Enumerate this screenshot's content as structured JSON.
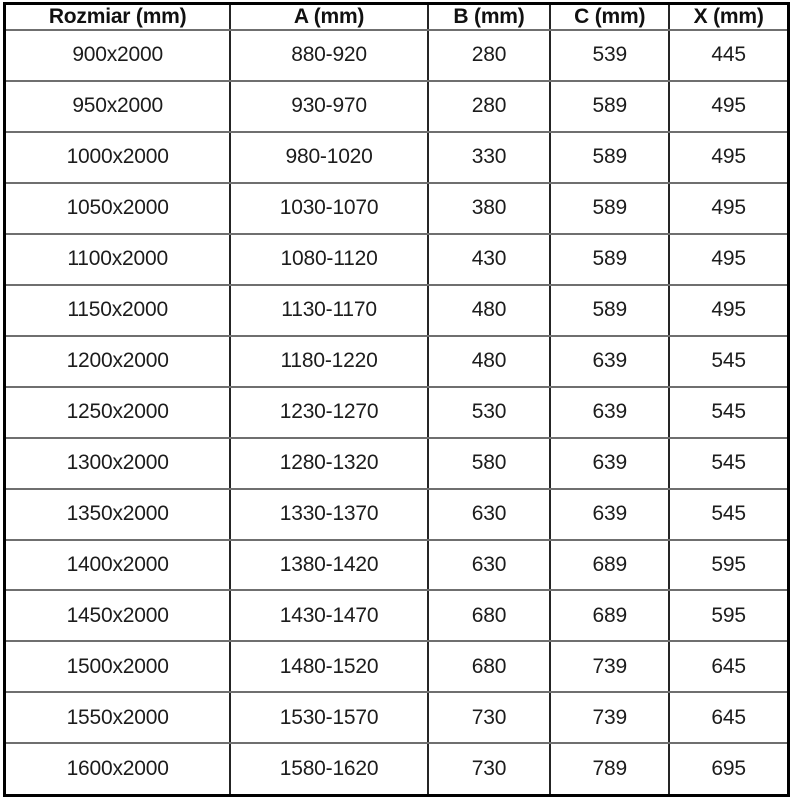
{
  "table": {
    "headers": [
      "Rozmiar (mm)",
      "A (mm)",
      "B (mm)",
      "C (mm)",
      "X (mm)"
    ],
    "rows": [
      [
        "900x2000",
        "880-920",
        "280",
        "539",
        "445"
      ],
      [
        "950x2000",
        "930-970",
        "280",
        "589",
        "495"
      ],
      [
        "1000x2000",
        "980-1020",
        "330",
        "589",
        "495"
      ],
      [
        "1050x2000",
        "1030-1070",
        "380",
        "589",
        "495"
      ],
      [
        "1100x2000",
        "1080-1120",
        "430",
        "589",
        "495"
      ],
      [
        "1150x2000",
        "1130-1170",
        "480",
        "589",
        "495"
      ],
      [
        "1200x2000",
        "1180-1220",
        "480",
        "639",
        "545"
      ],
      [
        "1250x2000",
        "1230-1270",
        "530",
        "639",
        "545"
      ],
      [
        "1300x2000",
        "1280-1320",
        "580",
        "639",
        "545"
      ],
      [
        "1350x2000",
        "1330-1370",
        "630",
        "639",
        "545"
      ],
      [
        "1400x2000",
        "1380-1420",
        "630",
        "689",
        "595"
      ],
      [
        "1450x2000",
        "1430-1470",
        "680",
        "689",
        "595"
      ],
      [
        "1500x2000",
        "1480-1520",
        "680",
        "739",
        "645"
      ],
      [
        "1550x2000",
        "1530-1570",
        "730",
        "739",
        "645"
      ],
      [
        "1600x2000",
        "1580-1620",
        "730",
        "789",
        "695"
      ]
    ],
    "column_widths_pct": [
      28.8,
      25.2,
      15.6,
      15.2,
      15.2
    ]
  },
  "colors": {
    "background": "#ffffff",
    "text": "#1c1c1c",
    "outer_border": "#000000",
    "vertical_line": "#252525",
    "horizontal_line": "#6f6f6f"
  },
  "chart_data": {
    "type": "table",
    "title": "",
    "columns": [
      "Rozmiar (mm)",
      "A (mm)",
      "B (mm)",
      "C (mm)",
      "X (mm)"
    ],
    "rows": [
      [
        "900x2000",
        "880-920",
        "280",
        "539",
        "445"
      ],
      [
        "950x2000",
        "930-970",
        "280",
        "589",
        "495"
      ],
      [
        "1000x2000",
        "980-1020",
        "330",
        "589",
        "495"
      ],
      [
        "1050x2000",
        "1030-1070",
        "380",
        "589",
        "495"
      ],
      [
        "1100x2000",
        "1080-1120",
        "430",
        "589",
        "495"
      ],
      [
        "1150x2000",
        "1130-1170",
        "480",
        "589",
        "495"
      ],
      [
        "1200x2000",
        "1180-1220",
        "480",
        "639",
        "545"
      ],
      [
        "1250x2000",
        "1230-1270",
        "530",
        "639",
        "545"
      ],
      [
        "1300x2000",
        "1280-1320",
        "580",
        "639",
        "545"
      ],
      [
        "1350x2000",
        "1330-1370",
        "630",
        "639",
        "545"
      ],
      [
        "1400x2000",
        "1380-1420",
        "630",
        "689",
        "595"
      ],
      [
        "1450x2000",
        "1430-1470",
        "680",
        "689",
        "595"
      ],
      [
        "1500x2000",
        "1480-1520",
        "680",
        "739",
        "645"
      ],
      [
        "1550x2000",
        "1530-1570",
        "730",
        "739",
        "645"
      ],
      [
        "1600x2000",
        "1580-1620",
        "730",
        "789",
        "695"
      ]
    ]
  }
}
